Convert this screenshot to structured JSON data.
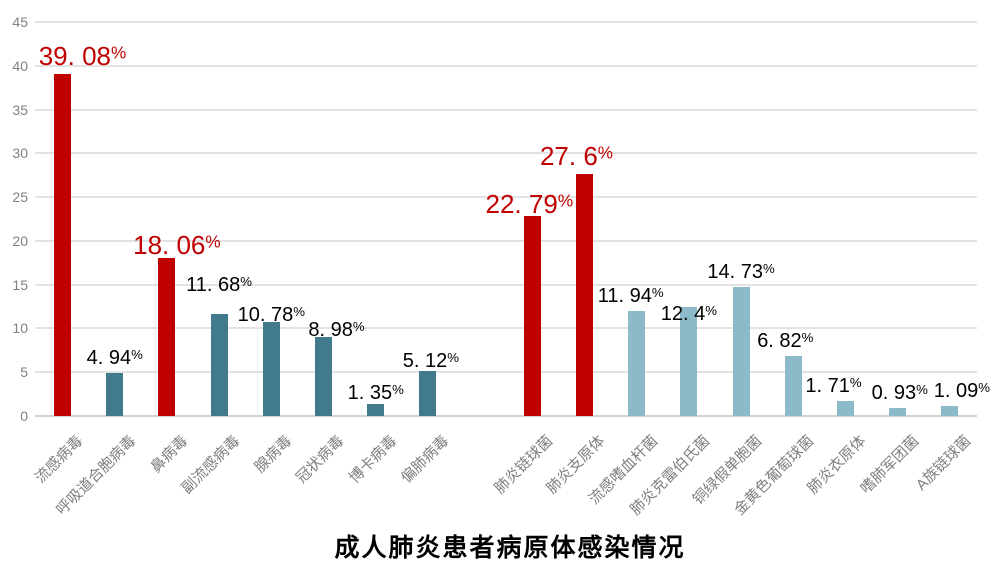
{
  "chart_data": {
    "type": "bar",
    "title": "成人肺炎患者病原体感染情况",
    "xlabel": "",
    "ylabel": "",
    "ylim": [
      0,
      45
    ],
    "yticks": [
      0,
      5,
      10,
      15,
      20,
      25,
      30,
      35,
      40,
      45
    ],
    "grid": "horizontal",
    "legend_position": "none",
    "label_unit": "%",
    "colors": {
      "highlight_bar": "#c00000",
      "virus_bar": "#417a8c",
      "bacteria_bar": "#8dbac9",
      "highlight_label": "#c00000",
      "data_label": "#000000",
      "axis_text": "#808080",
      "category_text": "#7f7f7f",
      "gridline": "#e2e2e2"
    },
    "groups": [
      {
        "name": "viruses",
        "bars": [
          {
            "category": "流感病毒",
            "value": 39.08,
            "label": "39. 08%",
            "highlight": true
          },
          {
            "category": "呼吸道合胞病毒",
            "value": 4.94,
            "label": "4. 94%",
            "highlight": false
          },
          {
            "category": "鼻病毒",
            "value": 18.06,
            "label": "18. 06%",
            "highlight": true
          },
          {
            "category": "副流感病毒",
            "value": 11.68,
            "label": "11. 68%",
            "highlight": false
          },
          {
            "category": "腺病毒",
            "value": 10.78,
            "label": "10. 78%",
            "highlight": false
          },
          {
            "category": "冠状病毒",
            "value": 8.98,
            "label": "8. 98%",
            "highlight": false
          },
          {
            "category": "博卡病毒",
            "value": 1.35,
            "label": "1. 35%",
            "highlight": false
          },
          {
            "category": "偏肺病毒",
            "value": 5.12,
            "label": "5. 12%",
            "highlight": false
          }
        ]
      },
      {
        "name": "bacteria",
        "bars": [
          {
            "category": "肺炎链球菌",
            "value": 22.79,
            "label": "22. 79%",
            "highlight": true
          },
          {
            "category": "肺炎支原体",
            "value": 27.6,
            "label": "27. 6%",
            "highlight": true
          },
          {
            "category": "流感嗜血杆菌",
            "value": 11.94,
            "label": "11. 94%",
            "highlight": false
          },
          {
            "category": "肺炎克雷伯氏菌",
            "value": 12.4,
            "label": "12. 4%",
            "highlight": false
          },
          {
            "category": "铜绿假单胞菌",
            "value": 14.73,
            "label": "14. 73%",
            "highlight": false
          },
          {
            "category": "金黄色葡萄球菌",
            "value": 6.82,
            "label": "6. 82%",
            "highlight": false
          },
          {
            "category": "肺炎衣原体",
            "value": 1.71,
            "label": "1. 71%",
            "highlight": false
          },
          {
            "category": "嗜肺军团菌",
            "value": 0.93,
            "label": "0. 93%",
            "highlight": false
          },
          {
            "category": "A族链球菌",
            "value": 1.09,
            "label": "1. 09%",
            "highlight": false
          }
        ]
      }
    ]
  }
}
